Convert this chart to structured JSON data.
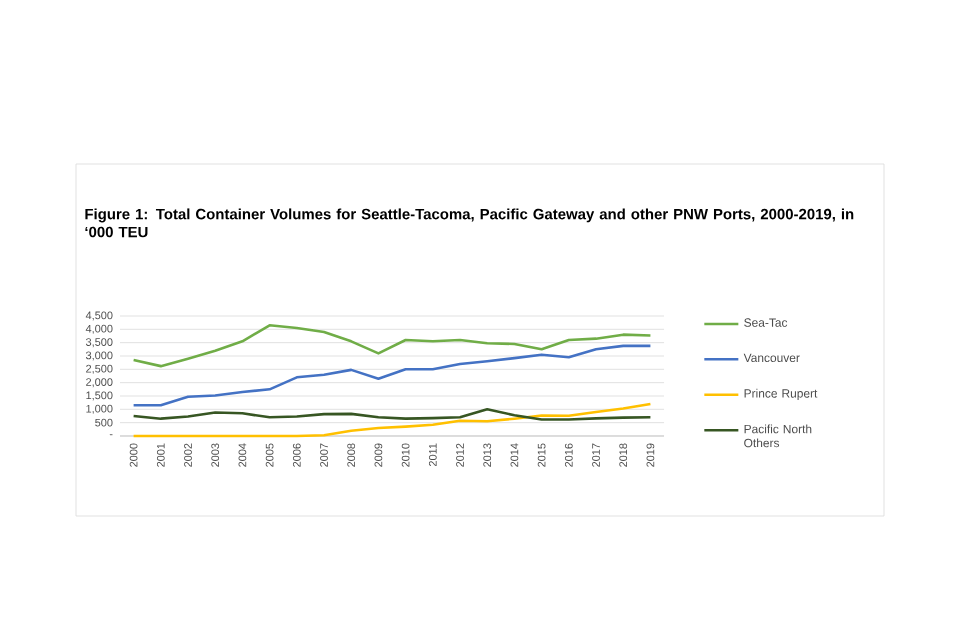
{
  "chart_data": {
    "type": "line",
    "title": "Figure 1: Total Container Volumes for Seattle-Tacoma, Pacific Gateway and other PNW Ports, 2000-2019, in ‘000 TEU",
    "categories": [
      "2000",
      "2001",
      "2002",
      "2003",
      "2004",
      "2005",
      "2006",
      "2007",
      "2008",
      "2009",
      "2010",
      "2011",
      "2012",
      "2013",
      "2014",
      "2015",
      "2016",
      "2017",
      "2018",
      "2019"
    ],
    "series": [
      {
        "name": "Sea-Tac",
        "color": "#70ad47",
        "values": [
          2850,
          2620,
          2900,
          3200,
          3550,
          4150,
          4050,
          3900,
          3550,
          3100,
          3600,
          3550,
          3600,
          3480,
          3450,
          3250,
          3600,
          3650,
          3800,
          3770
        ]
      },
      {
        "name": "Vancouver",
        "color": "#4472c4",
        "values": [
          1150,
          1150,
          1470,
          1520,
          1650,
          1750,
          2200,
          2300,
          2480,
          2150,
          2500,
          2500,
          2700,
          2800,
          2920,
          3050,
          2950,
          3250,
          3380,
          3380
        ]
      },
      {
        "name": "Prince Rupert",
        "color": "#ffc000",
        "values": [
          0,
          0,
          0,
          0,
          0,
          0,
          0,
          30,
          200,
          300,
          350,
          420,
          570,
          550,
          650,
          770,
          760,
          900,
          1030,
          1200
        ]
      },
      {
        "name": "Pacific North Others",
        "color": "#375623",
        "values": [
          750,
          650,
          730,
          880,
          850,
          700,
          730,
          820,
          830,
          700,
          650,
          670,
          700,
          1000,
          780,
          620,
          620,
          660,
          690,
          700
        ]
      }
    ],
    "ylim": [
      0,
      4500
    ],
    "yticks": [
      {
        "value": 0,
        "label": "-"
      },
      {
        "value": 500,
        "label": "500"
      },
      {
        "value": 1000,
        "label": "1,000"
      },
      {
        "value": 1500,
        "label": "1,500"
      },
      {
        "value": 2000,
        "label": "2,000"
      },
      {
        "value": 2500,
        "label": "2,500"
      },
      {
        "value": 3000,
        "label": "3,000"
      },
      {
        "value": 3500,
        "label": "3,500"
      },
      {
        "value": 4000,
        "label": "4,000"
      },
      {
        "value": 4500,
        "label": "4,500"
      }
    ],
    "grid": "y",
    "legend": "right",
    "marker": "none",
    "line_style": "solid"
  }
}
